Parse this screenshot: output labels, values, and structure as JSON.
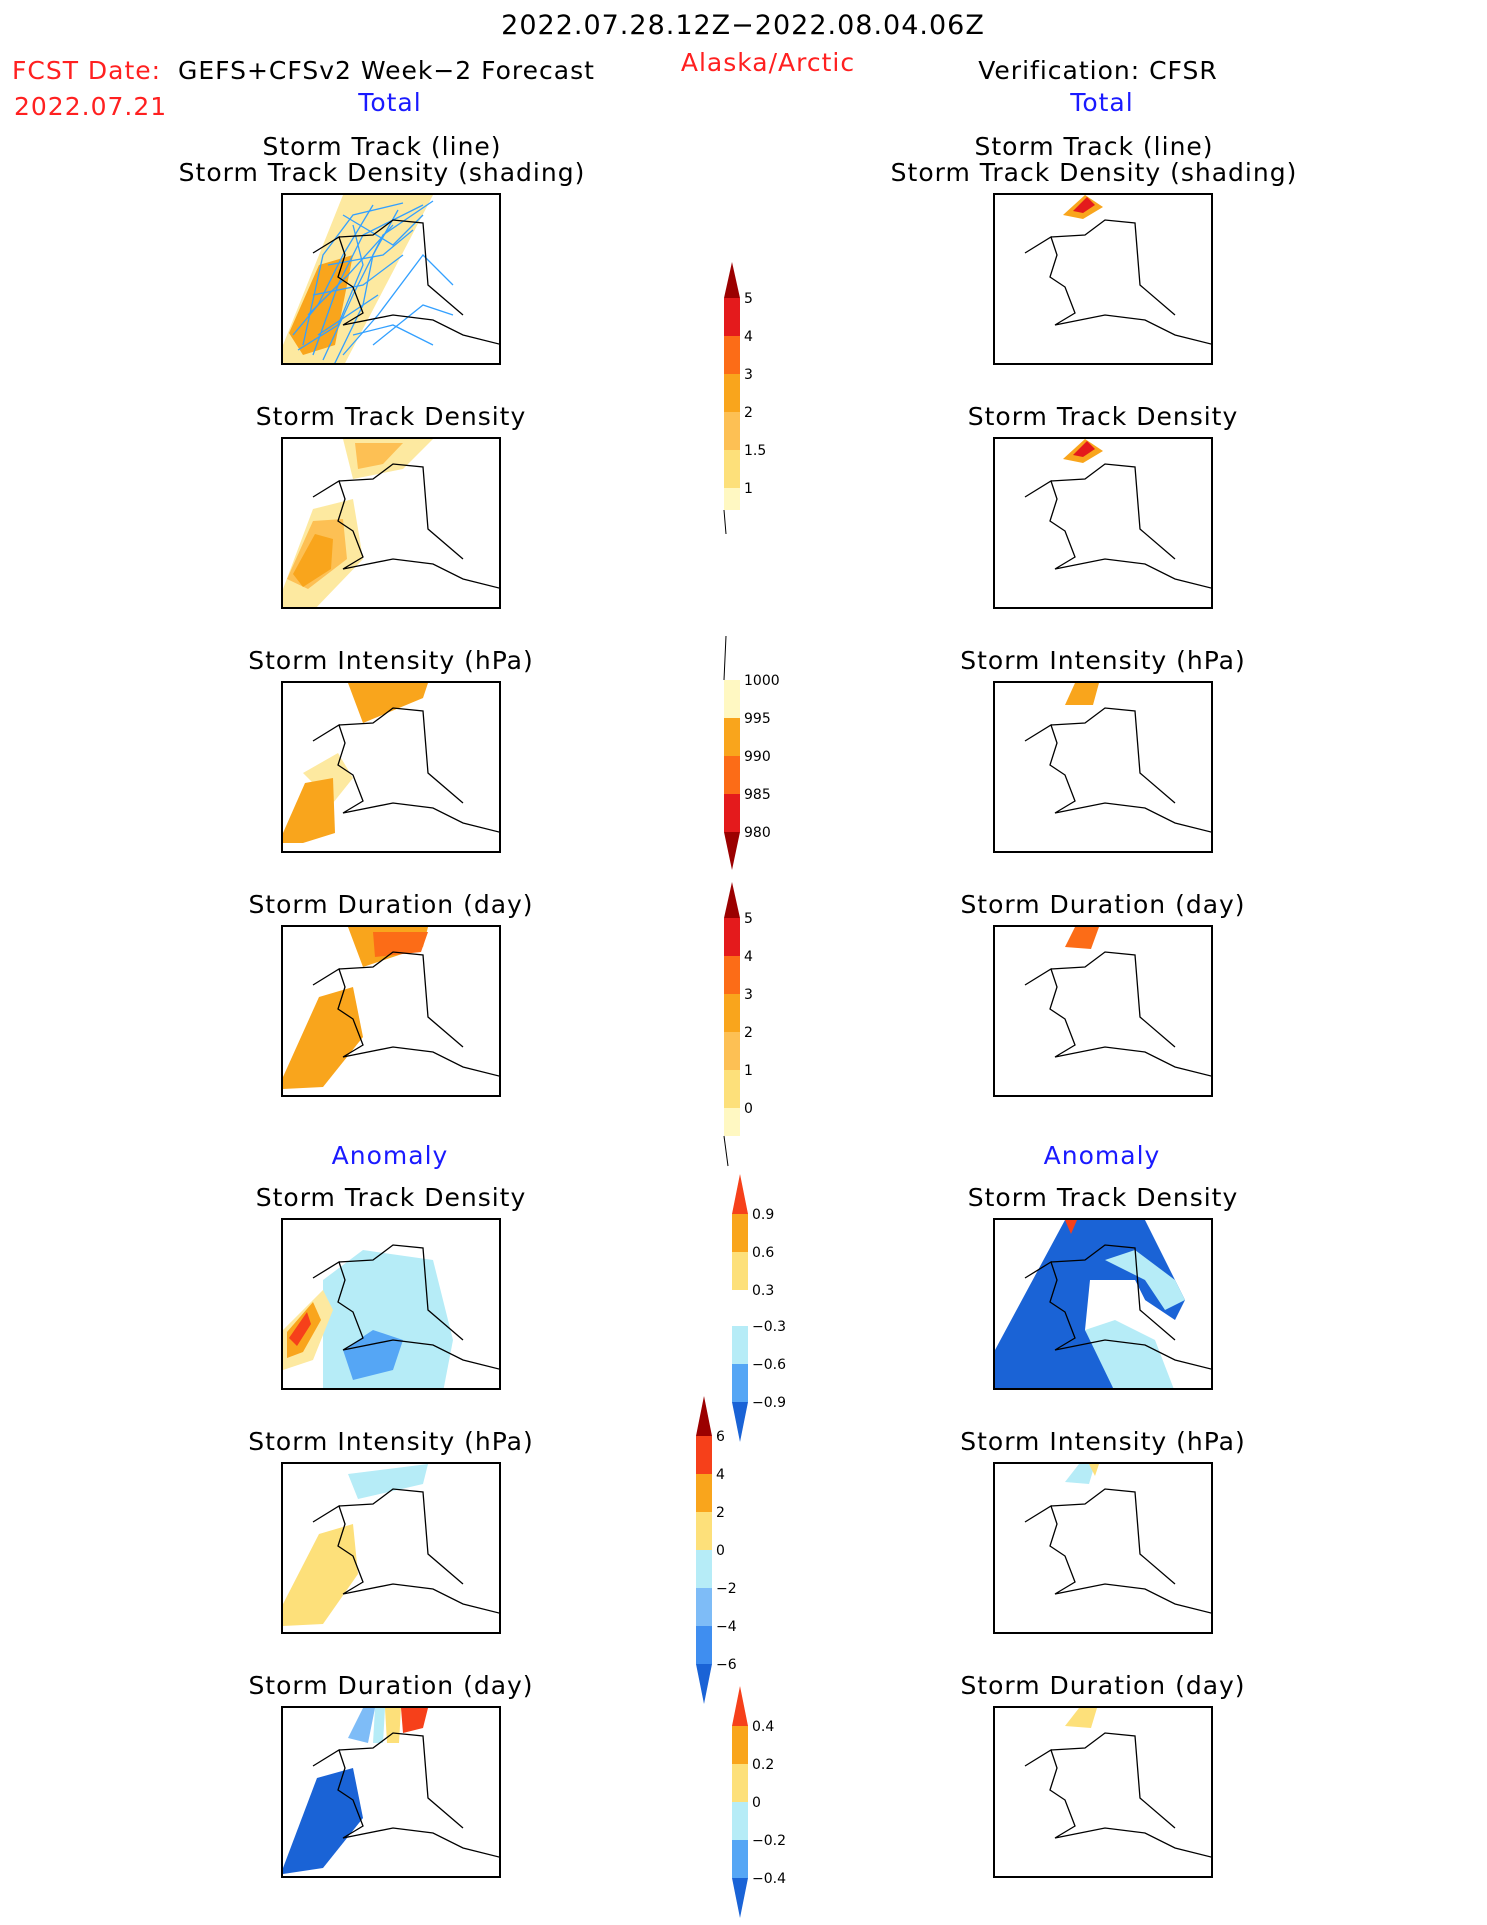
{
  "header": {
    "period": "2022.07.28.12Z−2022.08.04.06Z",
    "fcst_label": "FCST Date:",
    "model": "GEFS+CFSv2 Week−2 Forecast",
    "fcst_date": "2022.07.21",
    "region": "Alaska/Arctic",
    "verification": "Verification: CFSR"
  },
  "sections": {
    "total": "Total",
    "anomaly": "Anomaly"
  },
  "panel_titles": {
    "track_line": "Storm Track (line)",
    "track_shading": "Storm Track Density (shading)",
    "density": "Storm Track Density",
    "intensity": "Storm Intensity (hPa)",
    "duration": "Storm Duration (day)"
  },
  "colorbars": {
    "density_total": [
      "5",
      "4",
      "3",
      "2",
      "1.5",
      "1"
    ],
    "intensity_total": [
      "1000",
      "995",
      "990",
      "985",
      "980"
    ],
    "duration_total": [
      "5",
      "4",
      "3",
      "2",
      "1",
      "0"
    ],
    "density_anom": [
      "0.9",
      "0.6",
      "0.3",
      "−0.3",
      "−0.6",
      "−0.9"
    ],
    "intensity_anom": [
      "6",
      "4",
      "2",
      "0",
      "−2",
      "−4",
      "−6"
    ],
    "duration_anom": [
      "0.4",
      "0.2",
      "0",
      "−0.2",
      "−0.4"
    ]
  },
  "colors": {
    "title_red": "#ff2020",
    "section_blue": "#1a1aff",
    "track_line": "#33a0ff"
  }
}
